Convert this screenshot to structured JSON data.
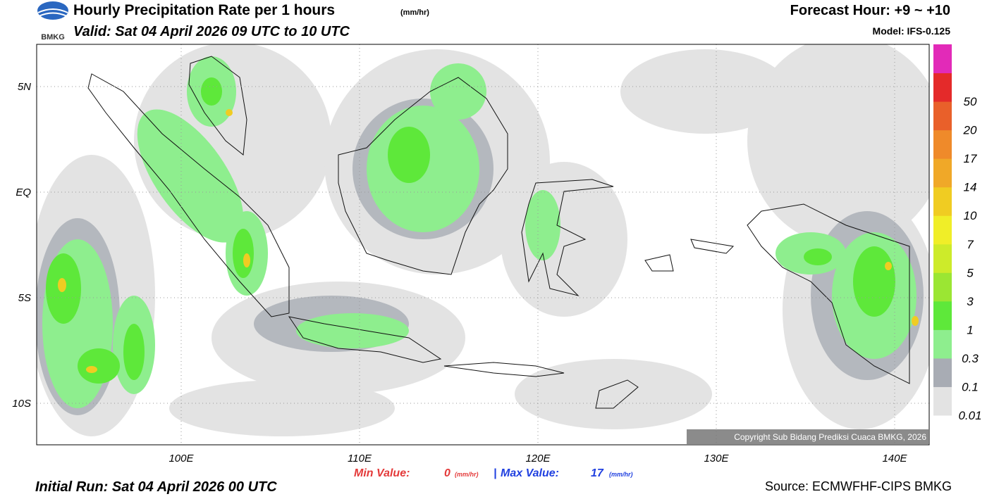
{
  "header": {
    "logo": "BMKG",
    "title": "Hourly Precipitation Rate per 1 hours",
    "title_unit": "(mm/hr)",
    "valid": "Valid: Sat 04 April 2026 09 UTC to 10 UTC",
    "forecast_hour": "Forecast Hour: +9 ~ +10",
    "model": "Model: IFS-0.125"
  },
  "map": {
    "lon_labels": [
      "100E",
      "110E",
      "120E",
      "130E",
      "140E"
    ],
    "lat_labels": [
      "5N",
      "EQ",
      "5S",
      "10S"
    ],
    "copyright": "Copyright Sub Bidang Prediksi Cuaca BMKG, 2026"
  },
  "colorbar": [
    {
      "label": "0.01",
      "color": "#e3e3e3"
    },
    {
      "label": "0.1",
      "color": "#a8acb4"
    },
    {
      "label": "0.3",
      "color": "#8eee8e"
    },
    {
      "label": "1",
      "color": "#5ee83a"
    },
    {
      "label": "3",
      "color": "#9be633"
    },
    {
      "label": "5",
      "color": "#cdeb2a"
    },
    {
      "label": "7",
      "color": "#f0ee28"
    },
    {
      "label": "10",
      "color": "#f0cc22"
    },
    {
      "label": "14",
      "color": "#f0a828"
    },
    {
      "label": "17",
      "color": "#ef8a2a"
    },
    {
      "label": "20",
      "color": "#e9602a"
    },
    {
      "label": "50",
      "color": "#e42a2a"
    },
    {
      "label": "",
      "color": "#e22ab8"
    }
  ],
  "footer": {
    "min_label": "Min Value:",
    "min_value": "0",
    "min_unit": "(mm/hr)",
    "separator": "|",
    "max_label": "Max Value:",
    "max_value": "17",
    "max_unit": "(mm/hr)",
    "initial_run": "Initial Run: Sat 04 April 2026 00 UTC",
    "source": "Source: ECMWFHF-CIPS BMKG"
  }
}
